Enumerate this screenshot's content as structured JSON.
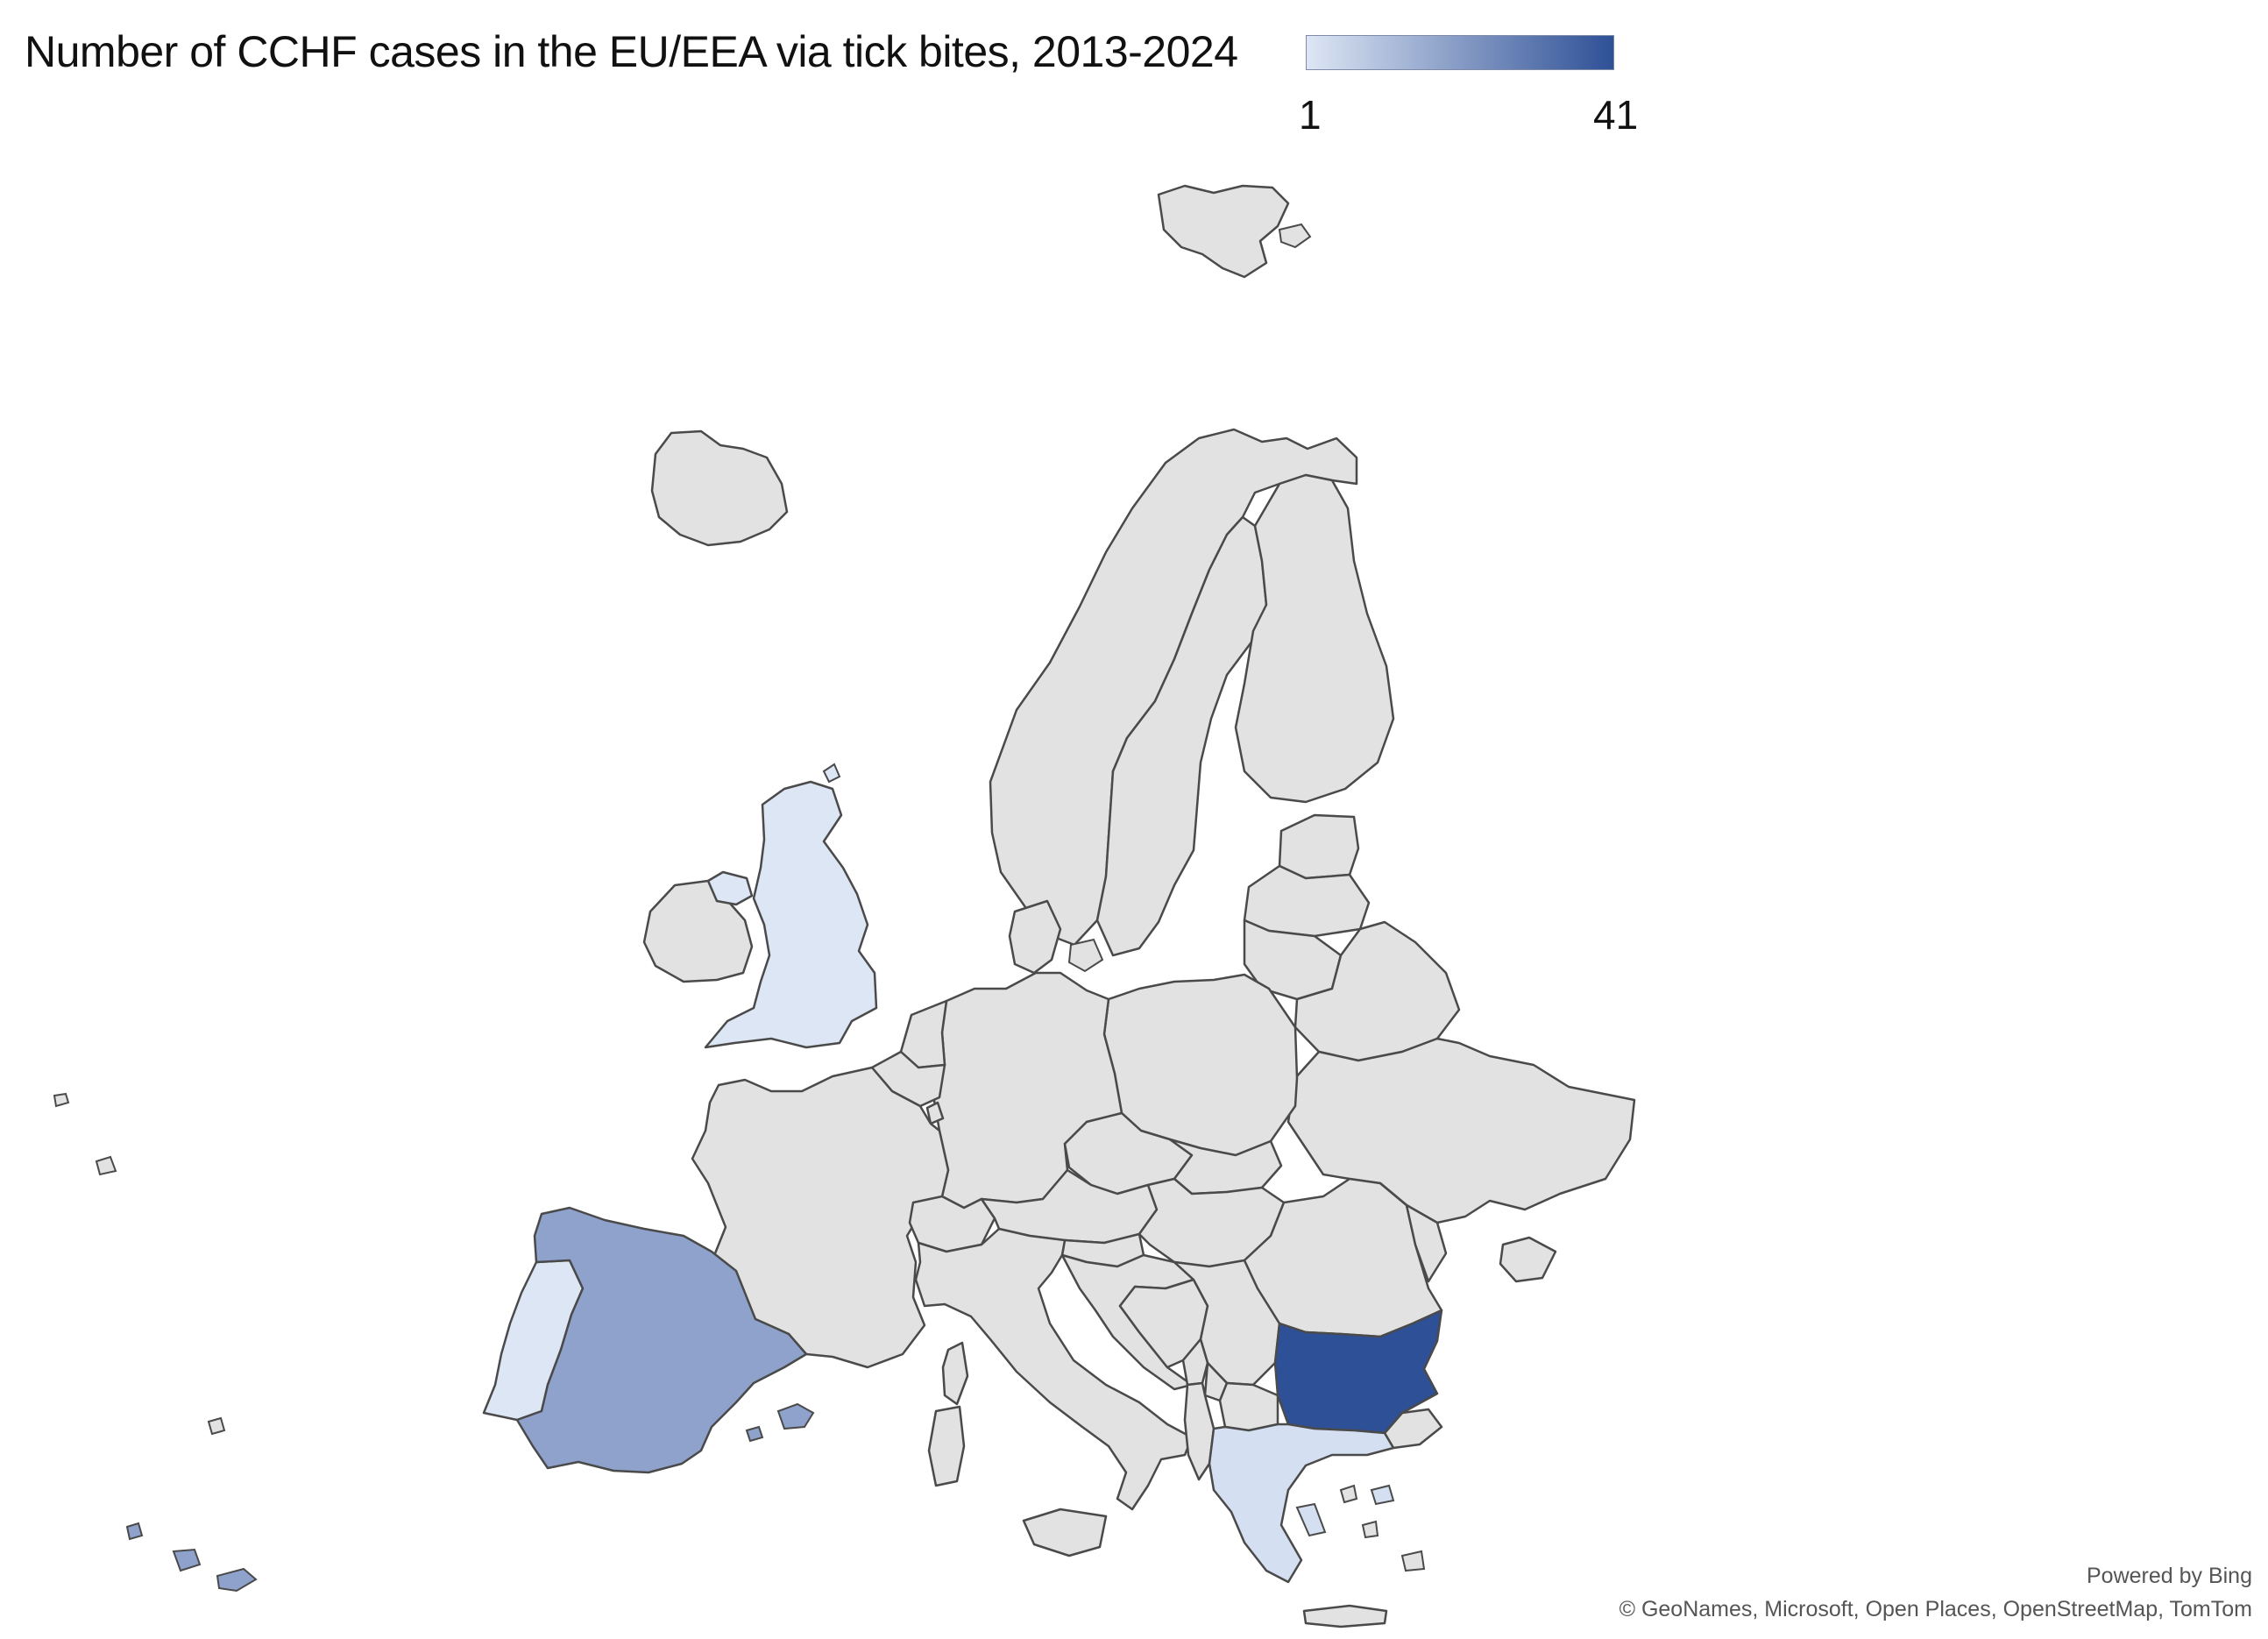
{
  "map": {
    "title": "Number of CCHF cases in the EU/EEA via tick bites, 2013-2024",
    "legend": {
      "min_label": "1",
      "max_label": "41",
      "color_low": "#dde6f4",
      "color_high": "#2e5096"
    },
    "colors": {
      "no_data": "#e2e2e2",
      "border": "#4a4a4a",
      "spain": "#8ea2cc",
      "portugal": "#dde6f4",
      "united_kingdom": "#dde6f4",
      "greece": "#d4dff2",
      "bulgaria": "#2e5096"
    },
    "highlighted_regions": [
      "Bulgaria",
      "Spain",
      "Greece",
      "Portugal",
      "United Kingdom"
    ],
    "credits": {
      "powered_by": "Powered by Bing",
      "attribution": "© GeoNames, Microsoft, Open Places, OpenStreetMap, TomTom"
    }
  }
}
